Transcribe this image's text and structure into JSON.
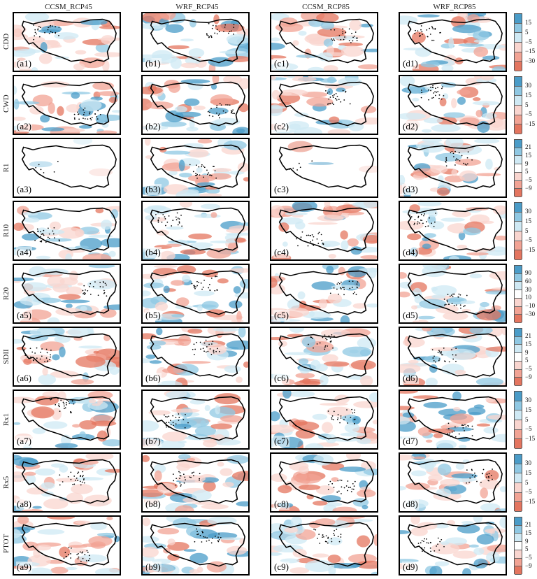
{
  "columns": [
    "CCSM_RCP45",
    "WRF_RCP45",
    "CCSM_RCP85",
    "WRF_RCP85"
  ],
  "rows": [
    {
      "name": "CDD",
      "labels": [
        "(a1)",
        "(b1)",
        "(c1)",
        "(d1)"
      ],
      "ticks": [
        "15",
        "5",
        "−5",
        "−15",
        "−30"
      ]
    },
    {
      "name": "CWD",
      "labels": [
        "(a2)",
        "(b2)",
        "(c2)",
        "(d2)"
      ],
      "ticks": [
        "30",
        "15",
        "5",
        "−5",
        "−15"
      ]
    },
    {
      "name": "R1",
      "labels": [
        "(a3)",
        "(b3)",
        "(c3)",
        "(d3)"
      ],
      "ticks": [
        "21",
        "15",
        "9",
        "5",
        "−5",
        "−9"
      ]
    },
    {
      "name": "R10",
      "labels": [
        "(a4)",
        "(b4)",
        "(c4)",
        "(d4)"
      ],
      "ticks": [
        "30",
        "15",
        "5",
        "−5",
        "−15"
      ]
    },
    {
      "name": "R20",
      "labels": [
        "(a5)",
        "(b5)",
        "(c5)",
        "(d5)"
      ],
      "ticks": [
        "90",
        "60",
        "30",
        "10",
        "−10",
        "−30"
      ]
    },
    {
      "name": "SDII",
      "labels": [
        "(a6)",
        "(b6)",
        "(c6)",
        "(d6)"
      ],
      "ticks": [
        "21",
        "15",
        "9",
        "5",
        "−5",
        "−9"
      ]
    },
    {
      "name": "Rx1",
      "labels": [
        "(a7)",
        "(b7)",
        "(c7)",
        "(d7)"
      ],
      "ticks": [
        "30",
        "15",
        "5",
        "−5",
        "−15"
      ]
    },
    {
      "name": "Rx5",
      "labels": [
        "(a8)",
        "(b8)",
        "(c8)",
        "(d8)"
      ],
      "ticks": [
        "30",
        "15",
        "5",
        "−5",
        "−15"
      ]
    },
    {
      "name": "PTOT",
      "labels": [
        "(a9)",
        "(b9)",
        "(c9)",
        "(d9)"
      ],
      "ticks": [
        "21",
        "15",
        "9",
        "5",
        "−5",
        "−9"
      ]
    }
  ],
  "colors": {
    "pos_strong": "#4a9cc8",
    "pos_mid": "#8fc8e3",
    "pos_light": "#cfe9f4",
    "neg_light": "#f9d5cf",
    "neg_mid": "#f2a394",
    "neg_strong": "#e4755f"
  }
}
